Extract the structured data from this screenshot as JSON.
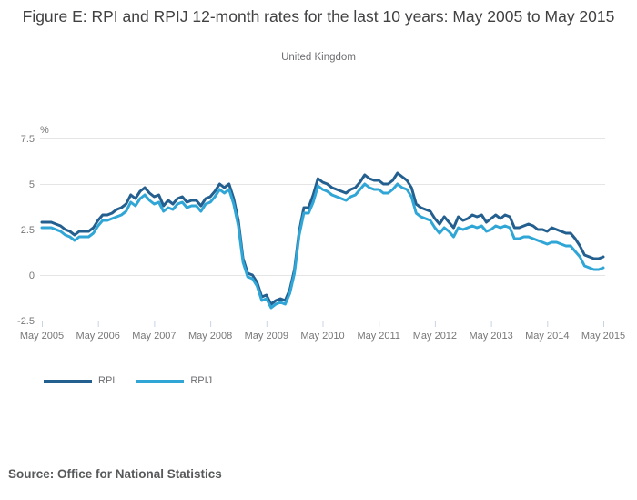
{
  "header": {
    "title": "Figure E: RPI and RPIJ 12-month rates for the last 10 years: May 2005 to May 2015",
    "subtitle": "United Kingdom"
  },
  "source": "Source: Office for National Statistics",
  "colors": {
    "rpi_line": "#235f8f",
    "rpij_line": "#30a6d6",
    "gridline": "#e5e5e5",
    "axis_line": "#c9d3e4",
    "tick_label": "#777779",
    "title_text": "#414042"
  },
  "chart_data": {
    "type": "line",
    "title": "Figure E: RPI and RPIJ 12-month rates for the last 10 years: May 2005 to May 2015",
    "subtitle": "United Kingdom",
    "xlabel": "",
    "ylabel": "%",
    "x_unit": "monthly, May 2005 to May 2015",
    "x_tick_labels": [
      "May 2005",
      "May 2006",
      "May 2007",
      "May 2008",
      "May 2009",
      "May 2010",
      "May 2011",
      "May 2012",
      "May 2013",
      "May 2014",
      "May 2015"
    ],
    "y_ticks": [
      -2.5,
      0,
      2.5,
      5,
      7.5
    ],
    "y_tick_labels": [
      "-2.5",
      "0",
      "2.5",
      "5",
      "7.5"
    ],
    "ylim": [
      -2.5,
      7.5
    ],
    "grid": "horizontal",
    "legend_position": "bottom-left",
    "series": [
      {
        "name": "RPI",
        "color": "#235f8f",
        "values": [
          2.9,
          2.9,
          2.9,
          2.8,
          2.7,
          2.5,
          2.4,
          2.2,
          2.4,
          2.4,
          2.4,
          2.6,
          3.0,
          3.3,
          3.3,
          3.4,
          3.6,
          3.7,
          3.9,
          4.4,
          4.2,
          4.6,
          4.8,
          4.5,
          4.3,
          4.4,
          3.8,
          4.1,
          3.9,
          4.2,
          4.3,
          4.0,
          4.1,
          4.1,
          3.8,
          4.2,
          4.3,
          4.6,
          5.0,
          4.8,
          5.0,
          4.2,
          3.0,
          0.9,
          0.1,
          0.0,
          -0.4,
          -1.2,
          -1.1,
          -1.6,
          -1.4,
          -1.3,
          -1.4,
          -0.8,
          0.3,
          2.4,
          3.7,
          3.7,
          4.4,
          5.3,
          5.1,
          5.0,
          4.8,
          4.7,
          4.6,
          4.5,
          4.7,
          4.8,
          5.1,
          5.5,
          5.3,
          5.2,
          5.2,
          5.0,
          5.0,
          5.2,
          5.6,
          5.4,
          5.2,
          4.8,
          3.9,
          3.7,
          3.6,
          3.5,
          3.1,
          2.8,
          3.2,
          2.9,
          2.6,
          3.2,
          3.0,
          3.1,
          3.3,
          3.2,
          3.3,
          2.9,
          3.1,
          3.3,
          3.1,
          3.3,
          3.2,
          2.6,
          2.6,
          2.7,
          2.8,
          2.7,
          2.5,
          2.5,
          2.4,
          2.6,
          2.5,
          2.4,
          2.3,
          2.3,
          2.0,
          1.6,
          1.1,
          1.0,
          0.9,
          0.9,
          1.0
        ]
      },
      {
        "name": "RPIJ",
        "color": "#30a6d6",
        "values": [
          2.6,
          2.6,
          2.6,
          2.5,
          2.4,
          2.2,
          2.1,
          1.9,
          2.1,
          2.1,
          2.1,
          2.3,
          2.7,
          3.0,
          3.0,
          3.1,
          3.2,
          3.3,
          3.5,
          4.0,
          3.8,
          4.2,
          4.4,
          4.1,
          3.9,
          4.0,
          3.5,
          3.7,
          3.6,
          3.9,
          4.0,
          3.7,
          3.8,
          3.8,
          3.5,
          3.9,
          4.0,
          4.3,
          4.7,
          4.5,
          4.7,
          3.9,
          2.7,
          0.7,
          -0.1,
          -0.2,
          -0.6,
          -1.4,
          -1.3,
          -1.8,
          -1.6,
          -1.5,
          -1.6,
          -1.0,
          0.1,
          2.2,
          3.4,
          3.4,
          4.0,
          4.9,
          4.7,
          4.6,
          4.4,
          4.3,
          4.2,
          4.1,
          4.3,
          4.4,
          4.7,
          5.0,
          4.8,
          4.7,
          4.7,
          4.5,
          4.5,
          4.7,
          5.0,
          4.8,
          4.7,
          4.3,
          3.4,
          3.2,
          3.1,
          3.0,
          2.6,
          2.3,
          2.6,
          2.4,
          2.1,
          2.6,
          2.5,
          2.6,
          2.7,
          2.6,
          2.7,
          2.4,
          2.5,
          2.7,
          2.6,
          2.7,
          2.6,
          2.0,
          2.0,
          2.1,
          2.1,
          2.0,
          1.9,
          1.8,
          1.7,
          1.8,
          1.8,
          1.7,
          1.6,
          1.6,
          1.3,
          1.0,
          0.5,
          0.4,
          0.3,
          0.3,
          0.4
        ]
      }
    ]
  }
}
